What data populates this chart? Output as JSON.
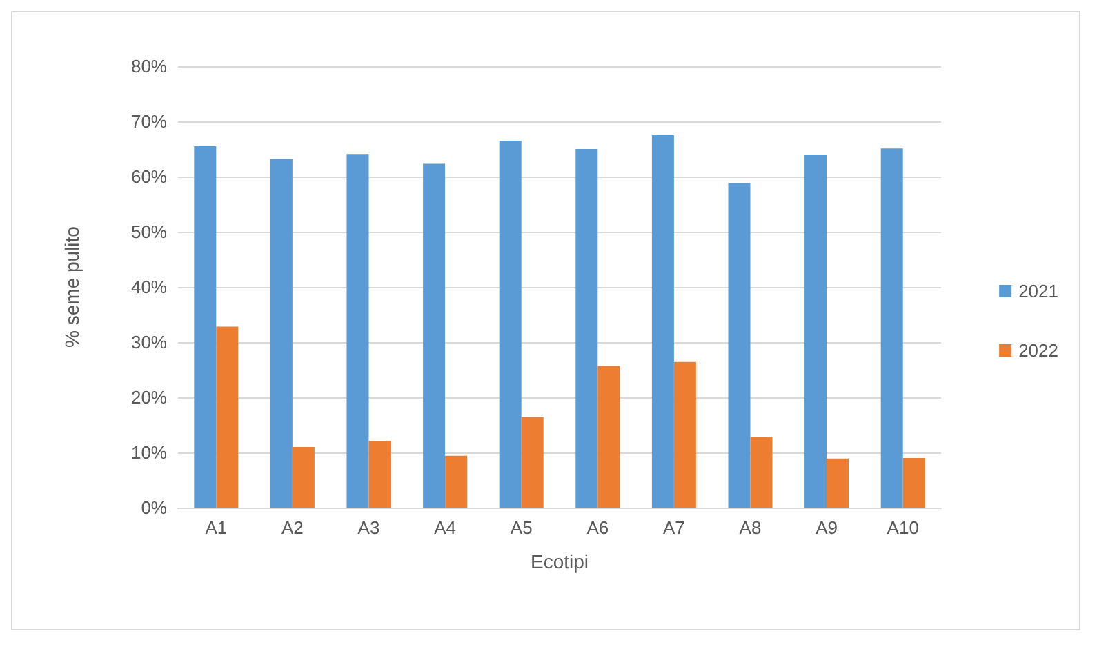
{
  "chart_data": {
    "type": "bar",
    "xlabel": "Ecotipi",
    "ylabel": "% seme pulito",
    "categories": [
      "A1",
      "A2",
      "A3",
      "A4",
      "A5",
      "A6",
      "A7",
      "A8",
      "A9",
      "A10"
    ],
    "series": [
      {
        "name": "2021",
        "color": "#5b9bd5",
        "values": [
          65.5,
          63.2,
          64.1,
          62.3,
          66.5,
          65.0,
          67.5,
          58.8,
          64.0,
          65.1
        ]
      },
      {
        "name": "2022",
        "color": "#ed7d31",
        "values": [
          32.8,
          11.0,
          12.1,
          9.4,
          16.4,
          25.7,
          26.4,
          12.8,
          8.9,
          9.0
        ]
      }
    ],
    "ylim": [
      0,
      80
    ],
    "yticks": [
      {
        "value": 0,
        "label": "0%"
      },
      {
        "value": 10,
        "label": "10%"
      },
      {
        "value": 20,
        "label": "20%"
      },
      {
        "value": 30,
        "label": "30%"
      },
      {
        "value": 40,
        "label": "40%"
      },
      {
        "value": 50,
        "label": "50%"
      },
      {
        "value": 60,
        "label": "60%"
      },
      {
        "value": 70,
        "label": "70%"
      },
      {
        "value": 80,
        "label": "80%"
      }
    ],
    "grid": "y",
    "legend": "right"
  }
}
